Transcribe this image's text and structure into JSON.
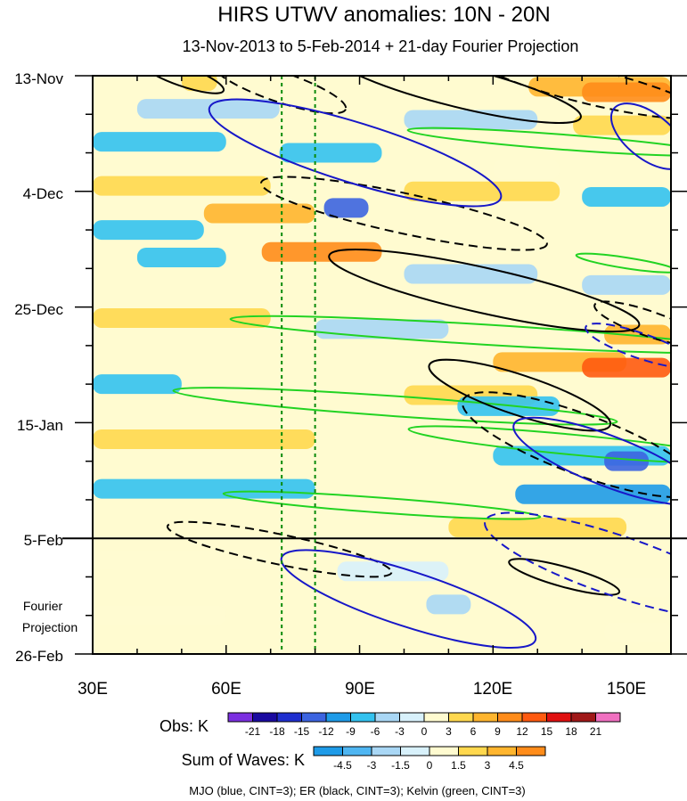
{
  "chart_data": {
    "type": "heatmap",
    "title": "HIRS UTWV anomalies: 10N - 20N",
    "subtitle": "13-Nov-2013 to 5-Feb-2014 + 21-day Fourier Projection",
    "x_axis": {
      "range": [
        30,
        160
      ],
      "ticks": [
        30,
        60,
        90,
        120,
        150
      ],
      "tick_labels": [
        "30E",
        "60E",
        "90E",
        "120E",
        "150E"
      ]
    },
    "y_axis": {
      "range_days": [
        0,
        105
      ],
      "ticks_days": [
        0,
        21,
        42,
        63,
        84,
        105
      ],
      "tick_labels": [
        "13-Nov",
        "4-Dec",
        "25-Dec",
        "15-Jan",
        "5-Feb",
        "26-Feb"
      ],
      "reversed": true
    },
    "obs_end_day": 84,
    "forecast_label": [
      "Fourier",
      "Projection"
    ],
    "reference_lons": [
      72.5,
      80
    ],
    "obs_legend": {
      "label": "Obs: K",
      "levels": [
        "-21",
        "-18",
        "-15",
        "-12",
        "-9",
        "-6",
        "-3",
        "0",
        "3",
        "6",
        "9",
        "12",
        "15",
        "18",
        "21"
      ],
      "colors": [
        "#7b2fe0",
        "#1a0aa0",
        "#1f2fcf",
        "#3c64e0",
        "#1e9be8",
        "#33c2ef",
        "#a9d7f5",
        "#d8f1fb",
        "#fffbd0",
        "#ffd84e",
        "#ffb52e",
        "#ff8c1a",
        "#ff5a10",
        "#e01010",
        "#a01818",
        "#f070c0"
      ]
    },
    "wave_legend": {
      "label": "Sum of Waves: K",
      "levels": [
        "-4.5",
        "-3",
        "-1.5",
        "0",
        "1.5",
        "3",
        "4.5"
      ],
      "colors": [
        "#1e9be8",
        "#4fb6f2",
        "#a9d7f5",
        "#d8f1fb",
        "#fffbd0",
        "#ffd84e",
        "#ffb52e",
        "#ff8c1a"
      ]
    },
    "bands": [
      {
        "day": 1,
        "lon1": 50,
        "lon2": 58,
        "value": 6
      },
      {
        "day": 2,
        "lon1": 128,
        "lon2": 160,
        "value": 9
      },
      {
        "day": 3,
        "lon1": 140,
        "lon2": 160,
        "value": 12
      },
      {
        "day": 6,
        "lon1": 40,
        "lon2": 72,
        "value": -3
      },
      {
        "day": 8,
        "lon1": 100,
        "lon2": 130,
        "value": -3
      },
      {
        "day": 9,
        "lon1": 138,
        "lon2": 160,
        "value": 6
      },
      {
        "day": 12,
        "lon1": 30,
        "lon2": 60,
        "value": -6
      },
      {
        "day": 14,
        "lon1": 72,
        "lon2": 95,
        "value": -6
      },
      {
        "day": 17,
        "lon1": 120,
        "lon2": 135,
        "value": 3
      },
      {
        "day": 20,
        "lon1": 30,
        "lon2": 70,
        "value": 6
      },
      {
        "day": 21,
        "lon1": 100,
        "lon2": 135,
        "value": 6
      },
      {
        "day": 22,
        "lon1": 140,
        "lon2": 160,
        "value": -6
      },
      {
        "day": 24,
        "lon1": 82,
        "lon2": 92,
        "value": -12
      },
      {
        "day": 25,
        "lon1": 55,
        "lon2": 80,
        "value": 9
      },
      {
        "day": 28,
        "lon1": 30,
        "lon2": 55,
        "value": -6
      },
      {
        "day": 32,
        "lon1": 68,
        "lon2": 95,
        "value": 12
      },
      {
        "day": 33,
        "lon1": 40,
        "lon2": 60,
        "value": -6
      },
      {
        "day": 36,
        "lon1": 100,
        "lon2": 130,
        "value": -3
      },
      {
        "day": 38,
        "lon1": 140,
        "lon2": 160,
        "value": -3
      },
      {
        "day": 44,
        "lon1": 30,
        "lon2": 70,
        "value": 6
      },
      {
        "day": 46,
        "lon1": 80,
        "lon2": 110,
        "value": -3
      },
      {
        "day": 47,
        "lon1": 145,
        "lon2": 160,
        "value": 9
      },
      {
        "day": 52,
        "lon1": 120,
        "lon2": 150,
        "value": 9
      },
      {
        "day": 53,
        "lon1": 140,
        "lon2": 160,
        "value": 15
      },
      {
        "day": 56,
        "lon1": 30,
        "lon2": 50,
        "value": -6
      },
      {
        "day": 58,
        "lon1": 100,
        "lon2": 130,
        "value": 6
      },
      {
        "day": 60,
        "lon1": 112,
        "lon2": 135,
        "value": -6
      },
      {
        "day": 66,
        "lon1": 30,
        "lon2": 80,
        "value": 6
      },
      {
        "day": 69,
        "lon1": 120,
        "lon2": 160,
        "value": -6
      },
      {
        "day": 70,
        "lon1": 145,
        "lon2": 155,
        "value": -12
      },
      {
        "day": 75,
        "lon1": 30,
        "lon2": 80,
        "value": -6
      },
      {
        "day": 76,
        "lon1": 125,
        "lon2": 160,
        "value": -9
      },
      {
        "day": 79,
        "lon1": 80,
        "lon2": 110,
        "value": 3
      },
      {
        "day": 82,
        "lon1": 110,
        "lon2": 150,
        "value": 6
      },
      {
        "day": 88,
        "lon1": 30,
        "lon2": 70,
        "value": 3
      },
      {
        "day": 90,
        "lon1": 85,
        "lon2": 110,
        "value": -1.5
      },
      {
        "day": 93,
        "lon1": 130,
        "lon2": 160,
        "value": 3
      },
      {
        "day": 96,
        "lon1": 105,
        "lon2": 115,
        "value": -3
      },
      {
        "day": 98,
        "lon1": 30,
        "lon2": 60,
        "value": 1.5
      },
      {
        "day": 101,
        "lon1": 145,
        "lon2": 160,
        "value": 3
      }
    ],
    "wave_contours": {
      "legend_text": "MJO (blue, CINT=3); ER (black, CINT=3); Kelvin (green, CINT=3)",
      "mjo": [
        {
          "lon": 89,
          "day": 14,
          "len_lon": 48,
          "len_day": 12,
          "dashed": false
        },
        {
          "lon": 155,
          "day": 11,
          "len_lon": 14,
          "len_day": 9,
          "dashed": false
        },
        {
          "lon": 146,
          "day": 70,
          "len_lon": 32,
          "len_day": 10,
          "dashed": false
        },
        {
          "lon": 101,
          "day": 95,
          "len_lon": 42,
          "len_day": 11,
          "dashed": false
        },
        {
          "lon": 148,
          "day": 89,
          "len_lon": 44,
          "len_day": 12,
          "dashed": true
        },
        {
          "lon": 153,
          "day": 49,
          "len_lon": 18,
          "len_day": 5,
          "dashed": true
        }
      ],
      "er": [
        {
          "lon": 50,
          "day": 0,
          "len_lon": 14,
          "len_day": 4,
          "dashed": false
        },
        {
          "lon": 72,
          "day": 2,
          "len_lon": 22,
          "len_day": 6,
          "dashed": true
        },
        {
          "lon": 112,
          "day": 2,
          "len_lon": 40,
          "len_day": 8,
          "dashed": false
        },
        {
          "lon": 142,
          "day": 2,
          "len_lon": 36,
          "len_day": 7,
          "dashed": true
        },
        {
          "lon": 100,
          "day": 25,
          "len_lon": 46,
          "len_day": 8,
          "dashed": true
        },
        {
          "lon": 118,
          "day": 39,
          "len_lon": 50,
          "len_day": 9,
          "dashed": false
        },
        {
          "lon": 126,
          "day": 58,
          "len_lon": 30,
          "len_day": 8,
          "dashed": false
        },
        {
          "lon": 140,
          "day": 67,
          "len_lon": 40,
          "len_day": 12,
          "dashed": true
        },
        {
          "lon": 72,
          "day": 86,
          "len_lon": 36,
          "len_day": 6,
          "dashed": true
        },
        {
          "lon": 136,
          "day": 91,
          "len_lon": 18,
          "len_day": 4,
          "dashed": false
        },
        {
          "lon": 155,
          "day": 45,
          "len_lon": 18,
          "len_day": 5,
          "dashed": true
        }
      ],
      "kelvin": [
        {
          "lon": 135,
          "day": 12,
          "len_lon": 48,
          "len_day": 3,
          "dashed": false
        },
        {
          "lon": 118,
          "day": 47,
          "len_lon": 80,
          "len_day": 4,
          "dashed": false
        },
        {
          "lon": 98,
          "day": 60,
          "len_lon": 70,
          "len_day": 4,
          "dashed": false
        },
        {
          "lon": 138,
          "day": 67,
          "len_lon": 52,
          "len_day": 4,
          "dashed": false
        },
        {
          "lon": 95,
          "day": 78,
          "len_lon": 50,
          "len_day": 3,
          "dashed": false
        },
        {
          "lon": 150,
          "day": 34,
          "len_lon": 16,
          "len_day": 2,
          "dashed": false
        }
      ]
    }
  }
}
